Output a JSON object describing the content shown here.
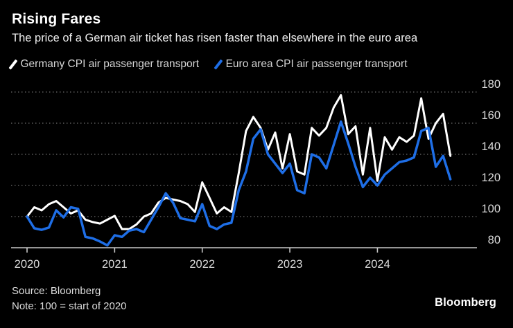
{
  "header": {
    "title": "Rising Fares",
    "subtitle": "The price of a German air ticket has risen faster than elsewhere in the euro area"
  },
  "legend": {
    "items": [
      {
        "label": "Germany CPI air passenger transport",
        "color": "#ffffff"
      },
      {
        "label": "Euro area CPI air passenger transport",
        "color": "#1e6ee6"
      }
    ]
  },
  "chart_data": {
    "type": "line",
    "title": "Rising Fares",
    "x_unit": "month",
    "x_start": "2020-01",
    "x_end": "2024-11",
    "x_tick_labels": [
      "2020",
      "2021",
      "2022",
      "2023",
      "2024"
    ],
    "y_ticks": [
      80,
      100,
      120,
      140,
      160,
      180
    ],
    "ylim": [
      80,
      180
    ],
    "grid": "horizontal-dotted",
    "legend_position": "top",
    "baseline_note": "100 = start of 2020",
    "series": [
      {
        "name": "Germany CPI air passenger transport",
        "color": "#ffffff",
        "width": 3,
        "values": [
          100,
          106,
          104,
          108,
          110,
          106,
          102,
          104,
          98,
          96.5,
          95.5,
          98,
          100.5,
          92,
          92,
          95,
          100,
          102,
          109,
          112,
          111,
          110,
          108,
          103,
          122,
          112,
          102,
          106,
          103,
          128,
          155,
          164,
          157,
          143,
          154,
          131,
          153,
          129,
          127,
          157,
          152,
          157,
          170,
          178,
          153,
          158,
          127,
          157,
          123,
          151,
          143,
          151,
          148,
          152,
          176,
          150,
          160,
          166,
          139
        ]
      },
      {
        "name": "Euro area CPI air passenger transport",
        "color": "#1e6ee6",
        "width": 3.5,
        "values": [
          100,
          92.5,
          91.5,
          93,
          104,
          99.5,
          106,
          105,
          87,
          86,
          84,
          81.5,
          88,
          87,
          91,
          92,
          90,
          98,
          106,
          115,
          109,
          99,
          98,
          97,
          108,
          94,
          92,
          95,
          96,
          117,
          129,
          150,
          156,
          140,
          134,
          128,
          134,
          117,
          115,
          140,
          138,
          131,
          146,
          161,
          147,
          132,
          119,
          125,
          120,
          127,
          131,
          135,
          136,
          138,
          155,
          157,
          132,
          139,
          124
        ]
      }
    ]
  },
  "footer": {
    "source": "Source: Bloomberg",
    "note": "Note: 100 = start of 2020",
    "logo": "Bloomberg"
  },
  "colors": {
    "background": "#000000",
    "grid": "#6e6e6e",
    "axis": "#c8c8c8",
    "tick_label": "#d9d9d9"
  }
}
